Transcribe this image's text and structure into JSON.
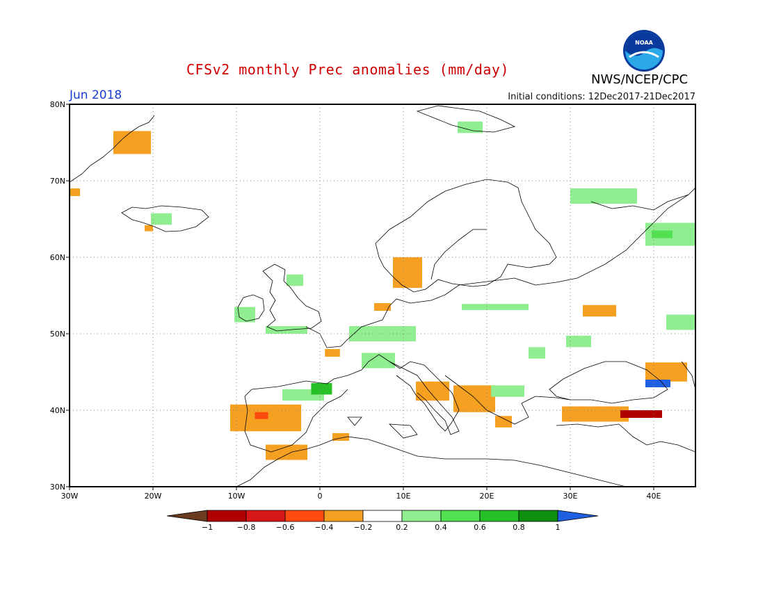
{
  "header": {
    "title": "CFSv2 monthly Prec anomalies (mm/day)",
    "month": "Jun 2018",
    "initial_conditions": "Initial conditions: 12Dec2017-21Dec2017",
    "agency": "NWS/NCEP/CPC",
    "logo_text": "NOAA"
  },
  "axes": {
    "x_labels": [
      "30W",
      "20W",
      "10W",
      "0",
      "10E",
      "20E",
      "30E",
      "40E"
    ],
    "y_labels": [
      "80N",
      "70N",
      "60N",
      "50N",
      "40N",
      "30N"
    ]
  },
  "colorbar": {
    "labels": [
      "-1",
      "-0.8",
      "-0.6",
      "-0.4",
      "-0.2",
      "0.2",
      "0.4",
      "0.6",
      "0.8",
      "1"
    ],
    "colors": [
      "#6b3a1f",
      "#b00000",
      "#d81818",
      "#ff4a10",
      "#f5a020",
      "#ffffff",
      "#90ee90",
      "#50e050",
      "#28c028",
      "#109010",
      "#2060e0"
    ]
  },
  "colors": {
    "neg_weak": "#f5a020",
    "neg_mid": "#ff4a10",
    "neg_strong": "#d81818",
    "neg_vstrong": "#b00000",
    "pos_weak": "#90ee90",
    "pos_mid": "#50e050",
    "pos_strong": "#28c028",
    "pos_vstrong": "#109010",
    "pos_max": "#2060e0"
  },
  "map": {
    "projection": "lat-lon",
    "extent": {
      "lon": [
        -30,
        45
      ],
      "lat": [
        30,
        80
      ]
    },
    "anomaly_patches": [
      {
        "lon": -22.5,
        "lat": 75.0,
        "w": 4.5,
        "h": 3.0,
        "c": "neg_weak"
      },
      {
        "lon": -29.5,
        "lat": 68.5,
        "w": 1.5,
        "h": 1.0,
        "c": "neg_weak"
      },
      {
        "lon": -19.0,
        "lat": 65.0,
        "w": 2.5,
        "h": 1.5,
        "c": "pos_weak"
      },
      {
        "lon": -20.5,
        "lat": 63.8,
        "w": 1.0,
        "h": 0.8,
        "c": "neg_weak"
      },
      {
        "lon": -9.0,
        "lat": 52.5,
        "w": 2.5,
        "h": 2.0,
        "c": "pos_weak"
      },
      {
        "lon": -4.0,
        "lat": 50.5,
        "w": 5.0,
        "h": 1.0,
        "c": "pos_weak"
      },
      {
        "lon": -3.0,
        "lat": 57.0,
        "w": 2.0,
        "h": 1.5,
        "c": "pos_weak"
      },
      {
        "lon": -2.0,
        "lat": 42.0,
        "w": 5.0,
        "h": 1.5,
        "c": "pos_weak"
      },
      {
        "lon": 0.2,
        "lat": 42.8,
        "w": 2.5,
        "h": 1.5,
        "c": "pos_strong"
      },
      {
        "lon": -6.5,
        "lat": 39.0,
        "w": 8.5,
        "h": 3.5,
        "c": "neg_weak"
      },
      {
        "lon": -7.0,
        "lat": 39.3,
        "w": 1.6,
        "h": 0.9,
        "c": "neg_mid"
      },
      {
        "lon": -4.0,
        "lat": 34.5,
        "w": 5.0,
        "h": 2.0,
        "c": "neg_weak"
      },
      {
        "lon": 2.5,
        "lat": 36.5,
        "w": 2.0,
        "h": 1.0,
        "c": "neg_weak"
      },
      {
        "lon": 1.5,
        "lat": 47.5,
        "w": 1.8,
        "h": 1.0,
        "c": "neg_weak"
      },
      {
        "lon": 7.5,
        "lat": 50.0,
        "w": 8.0,
        "h": 2.0,
        "c": "pos_weak"
      },
      {
        "lon": 7.0,
        "lat": 46.5,
        "w": 4.0,
        "h": 2.0,
        "c": "pos_weak"
      },
      {
        "lon": 10.5,
        "lat": 58.0,
        "w": 3.5,
        "h": 4.0,
        "c": "neg_weak"
      },
      {
        "lon": 7.5,
        "lat": 53.5,
        "w": 2.0,
        "h": 1.0,
        "c": "neg_weak"
      },
      {
        "lon": 13.5,
        "lat": 42.5,
        "w": 4.0,
        "h": 2.5,
        "c": "neg_weak"
      },
      {
        "lon": 18.5,
        "lat": 41.5,
        "w": 5.0,
        "h": 3.5,
        "c": "neg_weak"
      },
      {
        "lon": 22.0,
        "lat": 38.5,
        "w": 2.0,
        "h": 1.5,
        "c": "neg_weak"
      },
      {
        "lon": 22.5,
        "lat": 42.5,
        "w": 4.0,
        "h": 1.5,
        "c": "pos_weak"
      },
      {
        "lon": 21.0,
        "lat": 53.5,
        "w": 8.0,
        "h": 0.8,
        "c": "pos_weak"
      },
      {
        "lon": 33.5,
        "lat": 53.0,
        "w": 4.0,
        "h": 1.5,
        "c": "neg_weak"
      },
      {
        "lon": 33.0,
        "lat": 39.5,
        "w": 8.0,
        "h": 2.0,
        "c": "neg_weak"
      },
      {
        "lon": 38.5,
        "lat": 39.5,
        "w": 5.0,
        "h": 1.0,
        "c": "neg_vstrong"
      },
      {
        "lon": 41.5,
        "lat": 45.0,
        "w": 5.0,
        "h": 2.5,
        "c": "neg_weak"
      },
      {
        "lon": 40.5,
        "lat": 43.5,
        "w": 3.0,
        "h": 1.0,
        "c": "pos_max"
      },
      {
        "lon": 34.0,
        "lat": 68.0,
        "w": 8.0,
        "h": 2.0,
        "c": "pos_weak"
      },
      {
        "lon": 42.0,
        "lat": 63.0,
        "w": 6.0,
        "h": 3.0,
        "c": "pos_weak"
      },
      {
        "lon": 41.0,
        "lat": 63.0,
        "w": 2.5,
        "h": 1.0,
        "c": "pos_mid"
      },
      {
        "lon": 43.5,
        "lat": 51.5,
        "w": 4.0,
        "h": 2.0,
        "c": "pos_weak"
      },
      {
        "lon": 18.0,
        "lat": 77.0,
        "w": 3.0,
        "h": 1.5,
        "c": "pos_weak"
      },
      {
        "lon": 31.0,
        "lat": 49.0,
        "w": 3.0,
        "h": 1.5,
        "c": "pos_weak"
      },
      {
        "lon": 26.0,
        "lat": 47.5,
        "w": 2.0,
        "h": 1.5,
        "c": "pos_weak"
      }
    ]
  }
}
